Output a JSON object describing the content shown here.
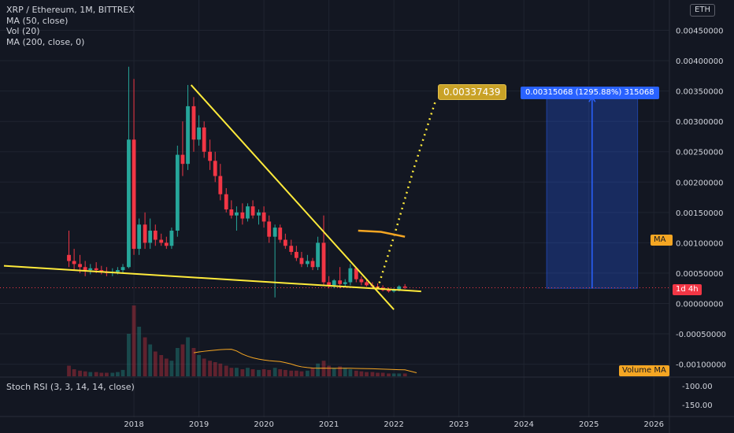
{
  "legend": {
    "symbol": "XRP / Ethereum, 1M, BITTREX",
    "ma50": "MA (50, close)",
    "vol": "Vol (20)",
    "ma200": "MA (200, close, 0)"
  },
  "stoch_label": "Stoch RSI (3, 3, 14, 14, close)",
  "currency_badge": "ETH",
  "tags": {
    "ma": "MA",
    "volume_ma": "Volume MA",
    "countdown": "1d 4h",
    "measure": "0.00315068 (1295.88%) 315068",
    "target": "0.00337439"
  },
  "colors": {
    "background": "#131722",
    "up": "#26a69a",
    "down": "#f23645",
    "trendline": "#ffeb3b",
    "ma": "#f5a623",
    "measure": "#2962ff",
    "grid": "#1f2430",
    "axis_text": "#d1d4dc"
  },
  "chart_data": {
    "type": "candlestick",
    "price_axis": {
      "ticks": [
        "0.00450000",
        "0.00400000",
        "0.00350000",
        "0.00300000",
        "0.00250000",
        "0.00200000",
        "0.00150000",
        "0.00100000",
        "0.00050000",
        "0.00000000",
        "-0.00050000",
        "-0.00100000"
      ],
      "range": [
        -0.0012,
        0.005
      ]
    },
    "oscillator_axis": {
      "ticks": [
        "-100.00",
        "-150.00"
      ]
    },
    "time_axis": {
      "ticks": [
        "2018",
        "2019",
        "2020",
        "2021",
        "2022",
        "2023",
        "2024",
        "2025",
        "2026"
      ]
    },
    "candles": [
      {
        "t": 2017.0,
        "o": 0.0008,
        "h": 0.0012,
        "l": 0.0006,
        "c": 0.0007
      },
      {
        "t": 2017.08,
        "o": 0.0007,
        "h": 0.0009,
        "l": 0.00055,
        "c": 0.00065
      },
      {
        "t": 2017.17,
        "o": 0.00065,
        "h": 0.0008,
        "l": 0.0005,
        "c": 0.0006
      },
      {
        "t": 2017.25,
        "o": 0.0006,
        "h": 0.0007,
        "l": 0.00045,
        "c": 0.00055
      },
      {
        "t": 2017.33,
        "o": 0.00055,
        "h": 0.00065,
        "l": 0.00048,
        "c": 0.00058
      },
      {
        "t": 2017.42,
        "o": 0.00058,
        "h": 0.00068,
        "l": 0.0005,
        "c": 0.00055
      },
      {
        "t": 2017.5,
        "o": 0.00055,
        "h": 0.00062,
        "l": 0.00048,
        "c": 0.00052
      },
      {
        "t": 2017.58,
        "o": 0.00052,
        "h": 0.0006,
        "l": 0.00045,
        "c": 0.0005
      },
      {
        "t": 2017.67,
        "o": 0.0005,
        "h": 0.00058,
        "l": 0.00045,
        "c": 0.00052
      },
      {
        "t": 2017.75,
        "o": 0.00052,
        "h": 0.0006,
        "l": 0.00048,
        "c": 0.00055
      },
      {
        "t": 2017.83,
        "o": 0.00055,
        "h": 0.00065,
        "l": 0.0005,
        "c": 0.0006
      },
      {
        "t": 2017.92,
        "o": 0.0006,
        "h": 0.0039,
        "l": 0.00058,
        "c": 0.0027
      },
      {
        "t": 2018.0,
        "o": 0.0027,
        "h": 0.0037,
        "l": 0.0008,
        "c": 0.0009
      },
      {
        "t": 2018.08,
        "o": 0.0009,
        "h": 0.0014,
        "l": 0.0008,
        "c": 0.0013
      },
      {
        "t": 2018.17,
        "o": 0.0013,
        "h": 0.0015,
        "l": 0.0009,
        "c": 0.001
      },
      {
        "t": 2018.25,
        "o": 0.001,
        "h": 0.0014,
        "l": 0.0009,
        "c": 0.0012
      },
      {
        "t": 2018.33,
        "o": 0.0012,
        "h": 0.0013,
        "l": 0.00095,
        "c": 0.00105
      },
      {
        "t": 2018.42,
        "o": 0.00105,
        "h": 0.00115,
        "l": 0.00095,
        "c": 0.001
      },
      {
        "t": 2018.5,
        "o": 0.001,
        "h": 0.0011,
        "l": 0.0009,
        "c": 0.00095
      },
      {
        "t": 2018.58,
        "o": 0.00095,
        "h": 0.00125,
        "l": 0.0009,
        "c": 0.0012
      },
      {
        "t": 2018.67,
        "o": 0.0012,
        "h": 0.0026,
        "l": 0.0011,
        "c": 0.00245
      },
      {
        "t": 2018.75,
        "o": 0.00245,
        "h": 0.003,
        "l": 0.0021,
        "c": 0.0023
      },
      {
        "t": 2018.83,
        "o": 0.0023,
        "h": 0.0036,
        "l": 0.0022,
        "c": 0.00325
      },
      {
        "t": 2018.92,
        "o": 0.00325,
        "h": 0.0034,
        "l": 0.0025,
        "c": 0.0027
      },
      {
        "t": 2019.0,
        "o": 0.0027,
        "h": 0.0031,
        "l": 0.0026,
        "c": 0.0029
      },
      {
        "t": 2019.08,
        "o": 0.0029,
        "h": 0.003,
        "l": 0.0024,
        "c": 0.0025
      },
      {
        "t": 2019.17,
        "o": 0.0025,
        "h": 0.0027,
        "l": 0.0022,
        "c": 0.00235
      },
      {
        "t": 2019.25,
        "o": 0.00235,
        "h": 0.0025,
        "l": 0.002,
        "c": 0.0021
      },
      {
        "t": 2019.33,
        "o": 0.0021,
        "h": 0.0023,
        "l": 0.0017,
        "c": 0.0018
      },
      {
        "t": 2019.42,
        "o": 0.0018,
        "h": 0.0019,
        "l": 0.0015,
        "c": 0.00155
      },
      {
        "t": 2019.5,
        "o": 0.00155,
        "h": 0.0017,
        "l": 0.0014,
        "c": 0.00145
      },
      {
        "t": 2019.58,
        "o": 0.00145,
        "h": 0.0016,
        "l": 0.0012,
        "c": 0.0015
      },
      {
        "t": 2019.67,
        "o": 0.0015,
        "h": 0.00165,
        "l": 0.0013,
        "c": 0.0014
      },
      {
        "t": 2019.75,
        "o": 0.0014,
        "h": 0.00165,
        "l": 0.00135,
        "c": 0.0016
      },
      {
        "t": 2019.83,
        "o": 0.0016,
        "h": 0.0017,
        "l": 0.0014,
        "c": 0.00145
      },
      {
        "t": 2019.92,
        "o": 0.00145,
        "h": 0.00155,
        "l": 0.0013,
        "c": 0.0015
      },
      {
        "t": 2020.0,
        "o": 0.0015,
        "h": 0.0016,
        "l": 0.00125,
        "c": 0.00135
      },
      {
        "t": 2020.08,
        "o": 0.00135,
        "h": 0.00145,
        "l": 0.001,
        "c": 0.0011
      },
      {
        "t": 2020.17,
        "o": 0.0011,
        "h": 0.0013,
        "l": 0.0001,
        "c": 0.00125
      },
      {
        "t": 2020.25,
        "o": 0.00125,
        "h": 0.0013,
        "l": 0.001,
        "c": 0.00105
      },
      {
        "t": 2020.33,
        "o": 0.00105,
        "h": 0.00115,
        "l": 0.0009,
        "c": 0.00095
      },
      {
        "t": 2020.42,
        "o": 0.00095,
        "h": 0.00105,
        "l": 0.0008,
        "c": 0.00085
      },
      {
        "t": 2020.5,
        "o": 0.00085,
        "h": 0.00095,
        "l": 0.0007,
        "c": 0.00075
      },
      {
        "t": 2020.58,
        "o": 0.00075,
        "h": 0.00085,
        "l": 0.0006,
        "c": 0.00065
      },
      {
        "t": 2020.67,
        "o": 0.00065,
        "h": 0.0008,
        "l": 0.0006,
        "c": 0.0007
      },
      {
        "t": 2020.75,
        "o": 0.0007,
        "h": 0.00075,
        "l": 0.00055,
        "c": 0.0006
      },
      {
        "t": 2020.83,
        "o": 0.0006,
        "h": 0.0011,
        "l": 0.00055,
        "c": 0.001
      },
      {
        "t": 2020.92,
        "o": 0.001,
        "h": 0.00145,
        "l": 0.0003,
        "c": 0.00035
      },
      {
        "t": 2021.0,
        "o": 0.00035,
        "h": 0.00045,
        "l": 0.00025,
        "c": 0.0003
      },
      {
        "t": 2021.08,
        "o": 0.0003,
        "h": 0.0004,
        "l": 0.00025,
        "c": 0.00038
      },
      {
        "t": 2021.17,
        "o": 0.00038,
        "h": 0.0006,
        "l": 0.00025,
        "c": 0.00032
      },
      {
        "t": 2021.25,
        "o": 0.00032,
        "h": 0.0004,
        "l": 0.00028,
        "c": 0.00035
      },
      {
        "t": 2021.33,
        "o": 0.00035,
        "h": 0.00065,
        "l": 0.0003,
        "c": 0.00058
      },
      {
        "t": 2021.42,
        "o": 0.00058,
        "h": 0.0006,
        "l": 0.00035,
        "c": 0.0004
      },
      {
        "t": 2021.5,
        "o": 0.0004,
        "h": 0.00045,
        "l": 0.0003,
        "c": 0.00035
      },
      {
        "t": 2021.58,
        "o": 0.00035,
        "h": 0.0004,
        "l": 0.00028,
        "c": 0.0003
      },
      {
        "t": 2021.67,
        "o": 0.0003,
        "h": 0.00035,
        "l": 0.00025,
        "c": 0.00028
      },
      {
        "t": 2021.75,
        "o": 0.00028,
        "h": 0.00033,
        "l": 0.00024,
        "c": 0.00026
      },
      {
        "t": 2021.83,
        "o": 0.00026,
        "h": 0.0003,
        "l": 0.0002,
        "c": 0.00022
      },
      {
        "t": 2021.92,
        "o": 0.00022,
        "h": 0.00026,
        "l": 0.00018,
        "c": 0.0002
      },
      {
        "t": 2022.0,
        "o": 0.0002,
        "h": 0.00025,
        "l": 0.00018,
        "c": 0.00022
      },
      {
        "t": 2022.08,
        "o": 0.00022,
        "h": 0.0003,
        "l": 0.0002,
        "c": 0.00028
      },
      {
        "t": 2022.17,
        "o": 0.00028,
        "h": 0.00032,
        "l": 0.00024,
        "c": 0.00026
      }
    ],
    "volume": [
      0.15,
      0.1,
      0.08,
      0.07,
      0.06,
      0.06,
      0.05,
      0.05,
      0.05,
      0.06,
      0.09,
      0.6,
      1.0,
      0.7,
      0.55,
      0.45,
      0.35,
      0.3,
      0.25,
      0.22,
      0.4,
      0.45,
      0.55,
      0.4,
      0.3,
      0.25,
      0.22,
      0.2,
      0.18,
      0.15,
      0.12,
      0.12,
      0.1,
      0.12,
      0.1,
      0.09,
      0.1,
      0.09,
      0.12,
      0.1,
      0.09,
      0.08,
      0.08,
      0.07,
      0.08,
      0.12,
      0.18,
      0.22,
      0.15,
      0.12,
      0.14,
      0.12,
      0.1,
      0.08,
      0.07,
      0.06,
      0.06,
      0.05,
      0.05,
      0.04,
      0.04,
      0.04,
      0.04
    ],
    "drawings": {
      "upper_trendline": [
        [
          2018.88,
          0.0036
        ],
        [
          2022.0,
          -0.0001
        ]
      ],
      "lower_trendline": [
        [
          2016.0,
          0.00062
        ],
        [
          2022.42,
          0.0002
        ]
      ],
      "projection_path": [
        [
          2021.75,
          0.00025
        ],
        [
          2022.0,
          0.0011
        ],
        [
          2022.3,
          0.0022
        ],
        [
          2022.65,
          0.00337
        ]
      ],
      "ma_segment": [
        [
          2021.45,
          0.0012
        ],
        [
          2021.8,
          0.00118
        ],
        [
          2022.17,
          0.0011
        ]
      ],
      "measure_box": {
        "from": [
          2024.35,
          0.00025
        ],
        "to": [
          2025.75,
          0.0034
        ]
      }
    }
  }
}
